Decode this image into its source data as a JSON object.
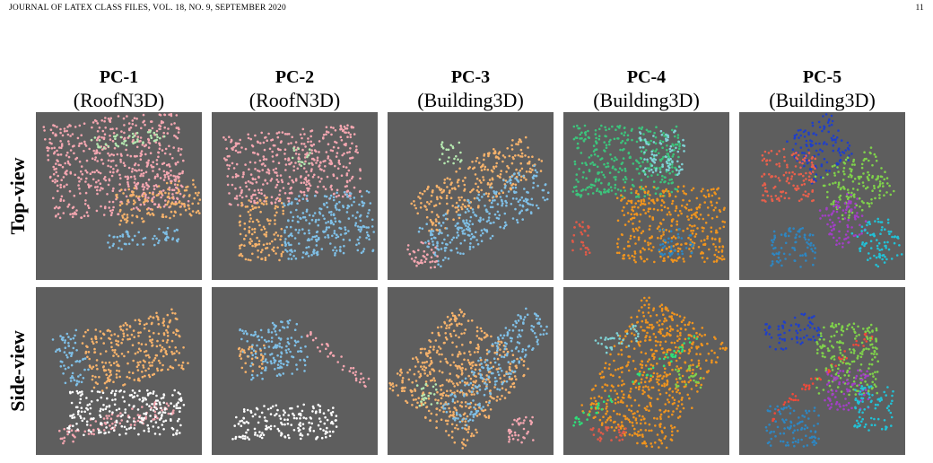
{
  "header": {
    "journal": "JOURNAL OF LATEX CLASS FILES, VOL. 18, NO. 9, SEPTEMBER 2020",
    "page": "11"
  },
  "figure": {
    "columns": [
      {
        "name": "PC-1",
        "dataset": "(RoofN3D)"
      },
      {
        "name": "PC-2",
        "dataset": "(RoofN3D)"
      },
      {
        "name": "PC-3",
        "dataset": "(Building3D)"
      },
      {
        "name": "PC-4",
        "dataset": "(Building3D)"
      },
      {
        "name": "PC-5",
        "dataset": "(Building3D)"
      }
    ],
    "rows": [
      "Top-view",
      "Side-view"
    ]
  }
}
